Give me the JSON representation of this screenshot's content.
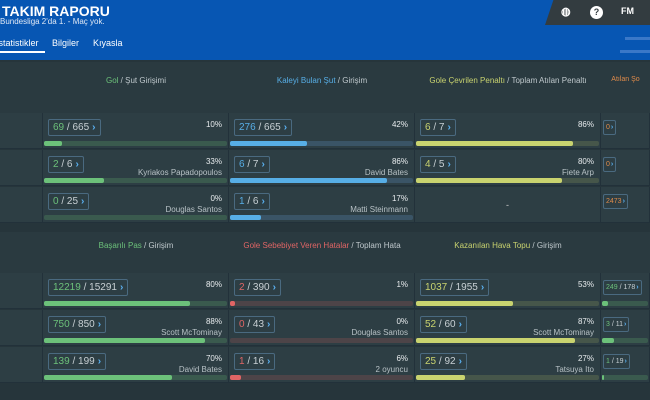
{
  "header": {
    "title": "TAKIM RAPORU",
    "subtitle": "Bundesliga 2'da 1. - Maç yok.",
    "tabs": [
      "İstatistikler",
      "Bilgiler",
      "Kıyasla"
    ],
    "fm_label": "FM",
    "help_label": "?"
  },
  "sections": [
    {
      "columns": [
        {
          "title_hi": "Gol",
          "title_rest": " / Şut Girişimi",
          "color": "#6cc17a",
          "track": "#3a5a4e",
          "cells": [
            {
              "value": "69",
              "total": "665",
              "pct": "10%",
              "fill": 10,
              "player": ""
            },
            {
              "value": "2",
              "total": "6",
              "pct": "33%",
              "fill": 33,
              "player": "Kyriakos Papadopoulos"
            },
            {
              "value": "0",
              "total": "25",
              "pct": "0%",
              "fill": 0,
              "player": "Douglas Santos"
            }
          ]
        },
        {
          "title_hi": "Kaleyi Bulan Şut",
          "title_rest": " / Girişim",
          "color": "#57aee6",
          "track": "#3a5466",
          "cells": [
            {
              "value": "276",
              "total": "665",
              "pct": "42%",
              "fill": 42,
              "player": ""
            },
            {
              "value": "6",
              "total": "7",
              "pct": "86%",
              "fill": 86,
              "player": "David Bates"
            },
            {
              "value": "1",
              "total": "6",
              "pct": "17%",
              "fill": 17,
              "player": "Matti Steinmann"
            }
          ]
        },
        {
          "title_hi": "Gole Çevrilen Penaltı",
          "title_rest": " / Toplam Atılan Penaltı",
          "color": "#c9d36f",
          "track": "#46564a",
          "cells": [
            {
              "value": "6",
              "total": "7",
              "pct": "86%",
              "fill": 86,
              "player": ""
            },
            {
              "value": "4",
              "total": "5",
              "pct": "80%",
              "fill": 80,
              "player": "Fiete Arp"
            },
            {
              "dash": "-"
            }
          ]
        },
        {
          "title_hi": "Atılan Şo",
          "title_rest": "",
          "color": "#e08b4a",
          "track": "",
          "cells": [
            {
              "value": "0"
            },
            {
              "value": "0"
            },
            {
              "value": "2473"
            }
          ]
        }
      ]
    },
    {
      "columns": [
        {
          "title_hi": "Başarılı Pas",
          "title_rest": " / Girişim",
          "color": "#6cc17a",
          "track": "#3a5a4e",
          "cells": [
            {
              "value": "12219",
              "total": "15291",
              "pct": "80%",
              "fill": 80,
              "player": ""
            },
            {
              "value": "750",
              "total": "850",
              "pct": "88%",
              "fill": 88,
              "player": "Scott McTominay"
            },
            {
              "value": "139",
              "total": "199",
              "pct": "70%",
              "fill": 70,
              "player": "David Bates"
            }
          ]
        },
        {
          "title_hi": "Gole Sebebiyet Veren Hatalar",
          "title_rest": " / Toplam Hata",
          "color": "#e06565",
          "track": "#4d4448",
          "cells": [
            {
              "value": "2",
              "total": "390",
              "pct": "1%",
              "fill": 1,
              "player": ""
            },
            {
              "value": "0",
              "total": "43",
              "pct": "0%",
              "fill": 0,
              "player": "Douglas Santos"
            },
            {
              "value": "1",
              "total": "16",
              "pct": "6%",
              "fill": 6,
              "player": "2 oyuncu"
            }
          ]
        },
        {
          "title_hi": "Kazanılan Hava Topu",
          "title_rest": " / Girişim",
          "color": "#c9d36f",
          "track": "#46564a",
          "cells": [
            {
              "value": "1037",
              "total": "1955",
              "pct": "53%",
              "fill": 53,
              "player": ""
            },
            {
              "value": "52",
              "total": "60",
              "pct": "87%",
              "fill": 87,
              "player": "Scott McTominay"
            },
            {
              "value": "25",
              "total": "92",
              "pct": "27%",
              "fill": 27,
              "player": "Tatsuya Ito"
            }
          ]
        },
        {
          "title_hi": "",
          "title_rest": "",
          "color": "#6cc17a",
          "track": "#3a5a4e",
          "cells": [
            {
              "value": "249",
              "total": "178",
              "fill": 14
            },
            {
              "value": "3",
              "total": "11",
              "fill": 27
            },
            {
              "value": "1",
              "total": "19",
              "fill": 5
            }
          ]
        }
      ]
    }
  ]
}
